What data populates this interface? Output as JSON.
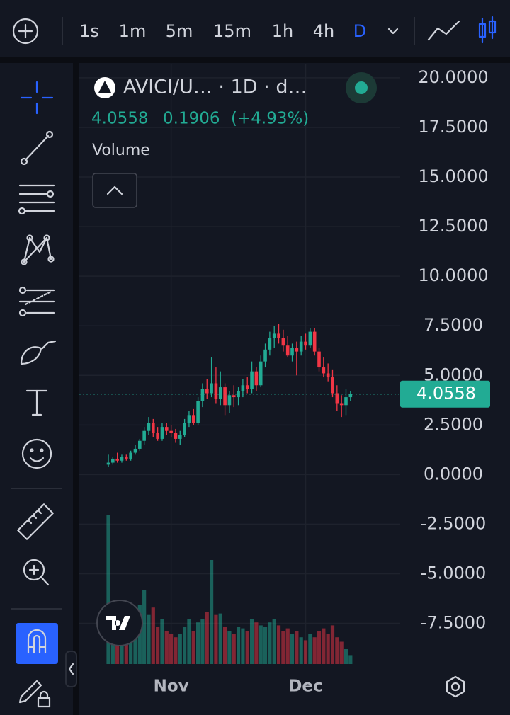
{
  "toolbar": {
    "intervals": [
      "1s",
      "1m",
      "5m",
      "15m",
      "1h",
      "4h",
      "D"
    ]
  },
  "chart_data": {
    "type": "candlestick",
    "title": "AVICI/U… · 1D · d…",
    "last_price": 4.0558,
    "change": 0.1906,
    "change_pct": "(+4.93%)",
    "volume_label": "Volume",
    "up_color": "#22ab94",
    "down_color": "#f23645",
    "categories": [
      null,
      null,
      null,
      null,
      null,
      null,
      null,
      null,
      null,
      null,
      null,
      null,
      null,
      null,
      "Nov",
      null,
      null,
      null,
      null,
      null,
      null,
      null,
      null,
      null,
      null,
      null,
      null,
      null,
      null,
      null,
      null,
      null,
      null,
      null,
      null,
      null,
      null,
      null,
      null,
      null,
      null,
      null,
      null,
      null,
      "Dec",
      null,
      null,
      null,
      null,
      null,
      null,
      null,
      null,
      null,
      null
    ],
    "ohlc": [
      [
        0.5,
        1.0,
        0.4,
        0.6
      ],
      [
        0.6,
        0.9,
        0.5,
        0.8
      ],
      [
        0.8,
        1.1,
        0.6,
        0.7
      ],
      [
        0.7,
        1.0,
        0.6,
        0.9
      ],
      [
        0.9,
        1.0,
        0.7,
        0.8
      ],
      [
        0.8,
        1.2,
        0.7,
        1.1
      ],
      [
        1.1,
        1.5,
        1.0,
        1.3
      ],
      [
        1.3,
        1.8,
        1.2,
        1.7
      ],
      [
        1.7,
        2.4,
        1.5,
        2.2
      ],
      [
        2.2,
        2.9,
        2.0,
        2.6
      ],
      [
        2.6,
        2.8,
        1.9,
        2.1
      ],
      [
        2.1,
        2.4,
        1.7,
        1.8
      ],
      [
        1.8,
        2.6,
        1.7,
        2.4
      ],
      [
        2.4,
        2.6,
        2.0,
        2.2
      ],
      [
        2.2,
        2.5,
        1.9,
        2.1
      ],
      [
        2.1,
        2.3,
        1.6,
        1.8
      ],
      [
        1.8,
        2.2,
        1.5,
        2.0
      ],
      [
        2.0,
        2.8,
        1.9,
        2.6
      ],
      [
        2.6,
        3.2,
        2.4,
        3.0
      ],
      [
        3.0,
        3.3,
        2.5,
        2.6
      ],
      [
        2.6,
        3.9,
        2.5,
        3.7
      ],
      [
        3.7,
        4.6,
        3.4,
        4.3
      ],
      [
        4.3,
        4.8,
        3.8,
        4.1
      ],
      [
        4.1,
        5.9,
        3.9,
        4.6
      ],
      [
        4.6,
        5.4,
        3.6,
        3.8
      ],
      [
        3.8,
        5.2,
        3.5,
        4.4
      ],
      [
        4.4,
        4.6,
        3.0,
        3.5
      ],
      [
        3.5,
        4.2,
        3.1,
        4.0
      ],
      [
        4.0,
        4.5,
        3.4,
        3.9
      ],
      [
        3.9,
        4.4,
        3.5,
        4.2
      ],
      [
        4.2,
        4.8,
        3.9,
        4.5
      ],
      [
        4.5,
        4.9,
        4.1,
        4.3
      ],
      [
        4.3,
        5.7,
        4.1,
        5.2
      ],
      [
        5.2,
        5.4,
        4.2,
        4.5
      ],
      [
        4.5,
        6.0,
        4.4,
        5.7
      ],
      [
        5.7,
        6.6,
        5.4,
        6.3
      ],
      [
        6.3,
        7.2,
        6.0,
        6.9
      ],
      [
        6.9,
        7.5,
        6.4,
        7.1
      ],
      [
        7.1,
        7.6,
        6.6,
        6.9
      ],
      [
        6.9,
        7.3,
        6.2,
        6.5
      ],
      [
        6.5,
        7.0,
        5.9,
        6.0
      ],
      [
        6.0,
        6.6,
        5.7,
        6.4
      ],
      [
        6.4,
        6.7,
        5.0,
        6.2
      ],
      [
        6.2,
        7.0,
        6.0,
        6.7
      ],
      [
        6.7,
        7.1,
        6.3,
        6.5
      ],
      [
        6.5,
        7.4,
        6.4,
        7.2
      ],
      [
        7.2,
        7.4,
        6.0,
        6.2
      ],
      [
        6.2,
        6.4,
        5.2,
        5.4
      ],
      [
        5.4,
        5.9,
        4.9,
        5.1
      ],
      [
        5.1,
        5.6,
        4.7,
        4.9
      ],
      [
        4.9,
        5.3,
        3.9,
        4.1
      ],
      [
        4.1,
        4.5,
        3.2,
        3.6
      ],
      [
        3.6,
        4.0,
        2.9,
        3.5
      ],
      [
        3.5,
        4.3,
        3.0,
        3.9
      ],
      [
        3.9,
        4.2,
        3.7,
        4.0558
      ]
    ],
    "volume": [
      100,
      30,
      28,
      25,
      30,
      28,
      35,
      40,
      50,
      33,
      38,
      25,
      30,
      22,
      20,
      18,
      20,
      25,
      30,
      22,
      28,
      30,
      35,
      70,
      33,
      34,
      25,
      22,
      20,
      25,
      24,
      22,
      30,
      28,
      26,
      25,
      28,
      30,
      26,
      22,
      24,
      20,
      22,
      18,
      16,
      20,
      18,
      22,
      24,
      20,
      26,
      18,
      15,
      10,
      6
    ],
    "vlim": [
      0,
      100
    ],
    "ylim": [
      -9.55,
      20.71
    ],
    "yticks": [
      {
        "value": 20,
        "label": "20.0000"
      },
      {
        "value": 17.5,
        "label": "17.5000"
      },
      {
        "value": 15,
        "label": "15.0000"
      },
      {
        "value": 12.5,
        "label": "12.5000"
      },
      {
        "value": 10,
        "label": "10.0000"
      },
      {
        "value": 7.5,
        "label": "7.5000"
      },
      {
        "value": 5,
        "label": "5.0000"
      },
      {
        "value": 2.5,
        "label": "2.5000"
      },
      {
        "value": 0,
        "label": "0.0000"
      },
      {
        "value": -2.5,
        "label": "-2.5000"
      },
      {
        "value": -5,
        "label": "-5.0000"
      },
      {
        "value": -7.5,
        "label": "-7.5000"
      }
    ],
    "grid": true
  }
}
